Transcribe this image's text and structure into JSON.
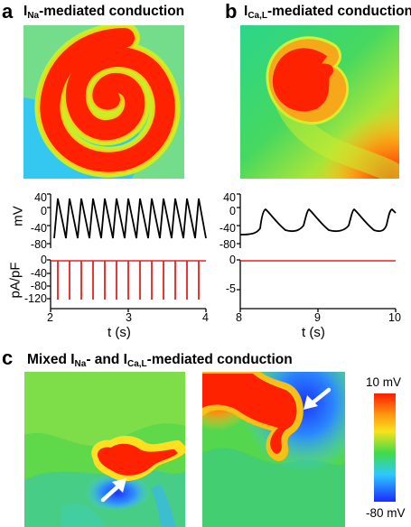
{
  "figure": {
    "panel_a": {
      "label": "a",
      "title_main": "I",
      "title_sub": "Na",
      "title_rest": "-mediated conduction",
      "voltage_axis": {
        "label": "mV",
        "ticks": [
          "40",
          "0",
          "-40",
          "-80"
        ]
      },
      "current_axis": {
        "label": "pA/pF",
        "ticks": [
          "0",
          "-40",
          "-80",
          "-120"
        ]
      },
      "time_axis": {
        "label": "t (s)",
        "ticks": [
          "2",
          "3",
          "4"
        ]
      }
    },
    "panel_b": {
      "label": "b",
      "title_main": "I",
      "title_sub": "Ca,L",
      "title_rest": "-mediated conduction",
      "voltage_axis": {
        "ticks": [
          "40",
          "0",
          "-40",
          "-80"
        ]
      },
      "current_axis": {
        "ticks": [
          "0",
          "-5"
        ]
      },
      "time_axis": {
        "label": "t (s)",
        "ticks": [
          "8",
          "9",
          "10"
        ]
      }
    },
    "panel_c": {
      "label": "c",
      "title_a": "Mixed I",
      "title_a_sub": "Na",
      "title_b": "- and I",
      "title_b_sub": "Ca,L",
      "title_c": "-mediated conduction",
      "colorbar": {
        "max_label": "10 mV",
        "min_label": "-80 mV"
      }
    },
    "colors": {
      "trace_voltage": "#000000",
      "trace_current": "#e8211f",
      "map_high": "#ff1a00",
      "map_low": "#1a3cff"
    }
  }
}
